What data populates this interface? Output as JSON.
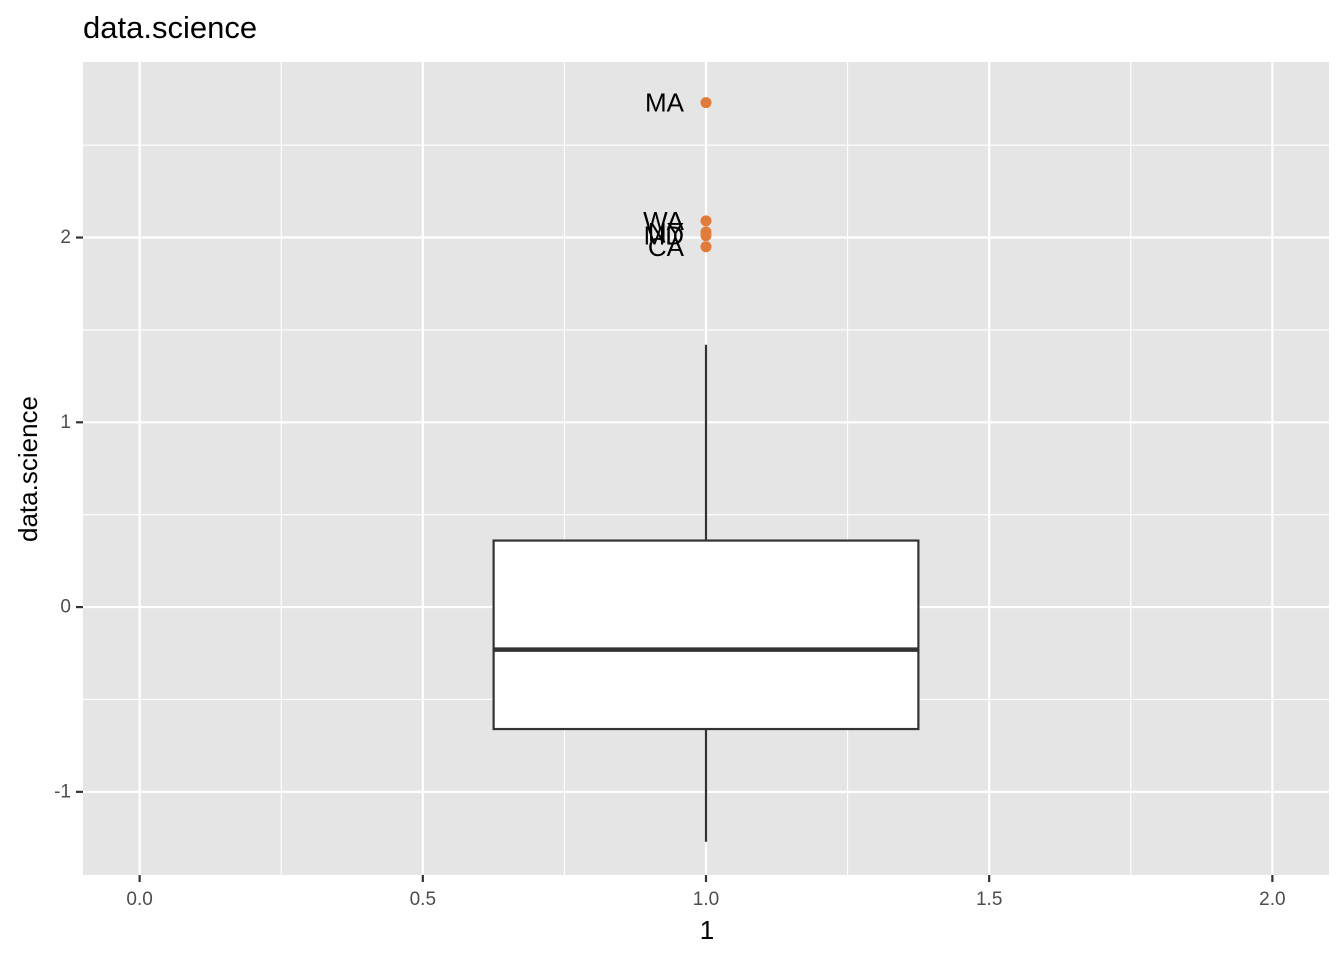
{
  "chart_data": {
    "type": "boxplot",
    "title": "data.science",
    "xlabel": "1",
    "ylabel": "data.science",
    "xlim": [
      -0.1,
      2.1
    ],
    "ylim": [
      -1.45,
      2.95
    ],
    "x_ticks": [
      {
        "value": 0.0,
        "label": "0.0"
      },
      {
        "value": 0.5,
        "label": "0.5"
      },
      {
        "value": 1.0,
        "label": "1.0"
      },
      {
        "value": 1.5,
        "label": "1.5"
      },
      {
        "value": 2.0,
        "label": "2.0"
      }
    ],
    "y_ticks": [
      {
        "value": -1,
        "label": "-1"
      },
      {
        "value": 0,
        "label": "0"
      },
      {
        "value": 1,
        "label": "1"
      },
      {
        "value": 2,
        "label": "2"
      }
    ],
    "x_minor": [
      0.25,
      0.75,
      1.25,
      1.75
    ],
    "y_minor": [
      -0.5,
      0.5,
      1.5,
      2.5
    ],
    "grid": true,
    "box": {
      "x": 1.0,
      "half_width": 0.375,
      "whisker_low": -1.27,
      "q1": -0.66,
      "median": -0.23,
      "q3": 0.36,
      "whisker_high": 1.42
    },
    "outliers": [
      {
        "label": "MA",
        "x": 1.0,
        "y": 2.73
      },
      {
        "label": "WA",
        "x": 1.0,
        "y": 2.09
      },
      {
        "label": "NY",
        "x": 1.0,
        "y": 2.03
      },
      {
        "label": "MD",
        "x": 1.0,
        "y": 2.01
      },
      {
        "label": "CA",
        "x": 1.0,
        "y": 1.95
      }
    ],
    "colors": {
      "panel": "#e5e5e5",
      "grid": "#ffffff",
      "box_fill": "#ffffff",
      "box_line": "#333333",
      "outlier": "#e07b39",
      "tick": "#333333"
    }
  }
}
